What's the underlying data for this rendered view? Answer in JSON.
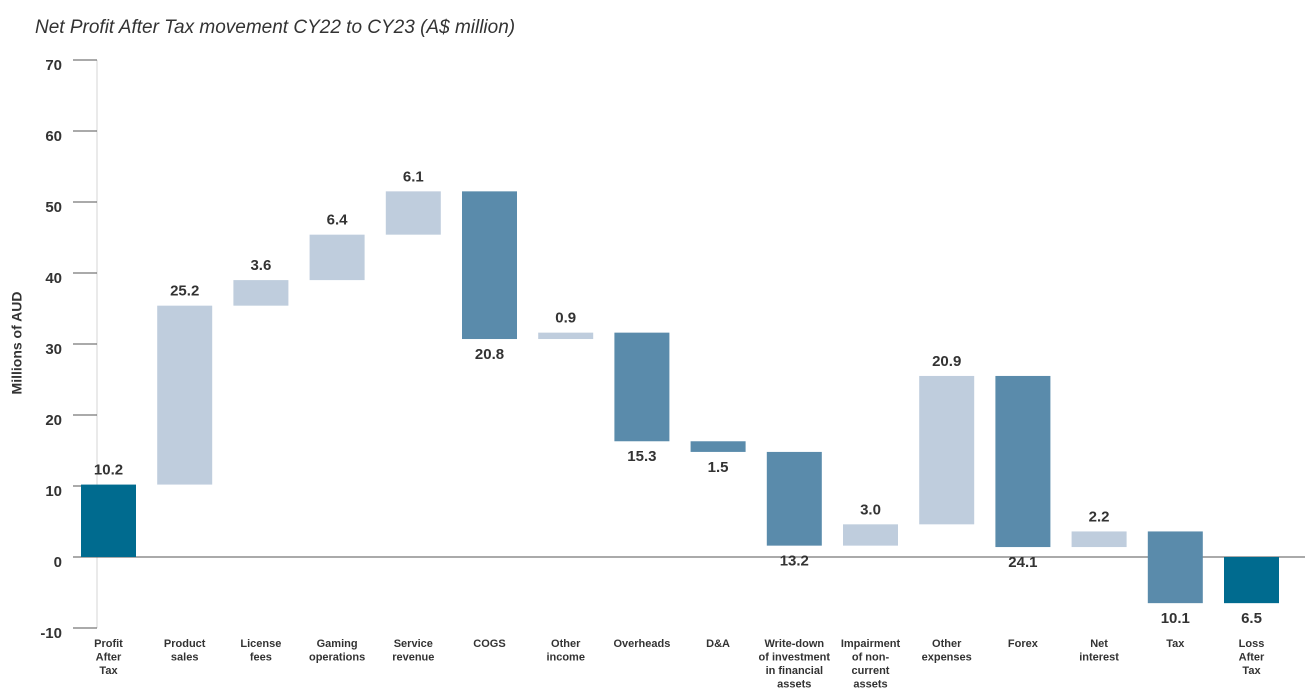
{
  "chart_data": {
    "type": "waterfall",
    "title": "Net Profit After Tax movement CY22 to CY23 (A$ million)",
    "y_label": "Millions of AUD",
    "categories": [
      [
        "Profit",
        "After",
        "Tax"
      ],
      [
        "Product",
        "sales"
      ],
      [
        "License",
        "fees"
      ],
      [
        "Gaming",
        "operations"
      ],
      [
        "Service",
        "revenue"
      ],
      [
        "COGS"
      ],
      [
        "Other",
        "income"
      ],
      [
        "Overheads"
      ],
      [
        "D&A"
      ],
      [
        "Write-down",
        "of investment",
        "in financial",
        "assets"
      ],
      [
        "Impairment",
        "of non-",
        "current",
        "assets"
      ],
      [
        "Other",
        "expenses"
      ],
      [
        "Forex"
      ],
      [
        "Net",
        "interest"
      ],
      [
        "Tax"
      ],
      [
        "Loss",
        "After",
        "Tax"
      ]
    ],
    "values": [
      10.2,
      25.2,
      3.6,
      6.4,
      6.1,
      -20.8,
      0.9,
      -15.3,
      -1.5,
      -13.2,
      3.0,
      20.9,
      -24.1,
      2.2,
      -10.1,
      -6.5
    ],
    "value_labels": [
      "10.2",
      "25.2",
      "3.6",
      "6.4",
      "6.1",
      "20.8",
      "0.9",
      "15.3",
      "1.5",
      "13.2",
      "3.0",
      "20.9",
      "24.1",
      "2.2",
      "10.1",
      "6.5"
    ],
    "measure": [
      "total",
      "relative",
      "relative",
      "relative",
      "relative",
      "relative",
      "relative",
      "relative",
      "relative",
      "relative",
      "relative",
      "relative",
      "relative",
      "relative",
      "relative",
      "total"
    ],
    "colors": {
      "total": "#006b8f",
      "increase": "#bfcddd",
      "decrease": "#5a8bab"
    },
    "ylim": [
      -10,
      70
    ],
    "yticks": [
      -10,
      0,
      10,
      20,
      30,
      40,
      50,
      60,
      70
    ],
    "grid": false
  }
}
